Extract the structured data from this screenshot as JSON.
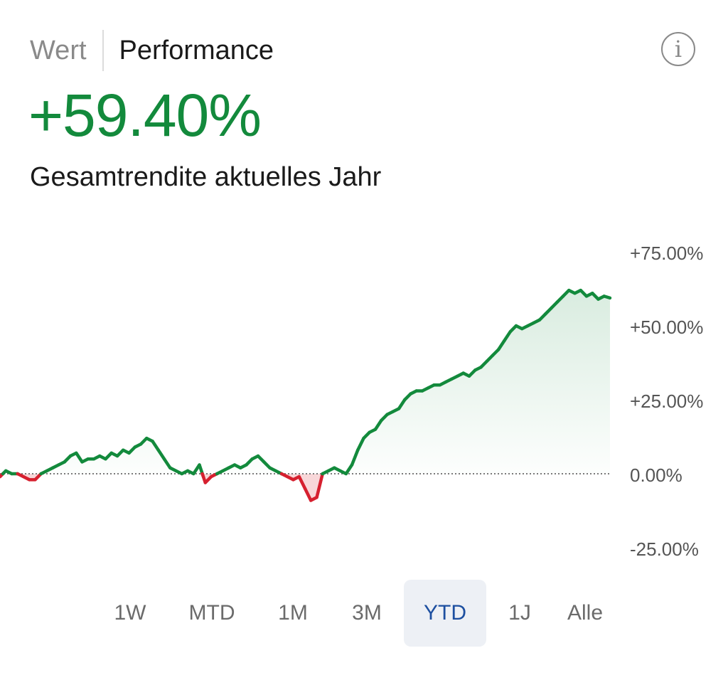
{
  "header": {
    "tabs": [
      {
        "label": "Wert",
        "active": false
      },
      {
        "label": "Performance",
        "active": true
      }
    ],
    "info_icon": "info-icon"
  },
  "summary": {
    "value": "+59.40%",
    "label": "Gesamtrendite aktuelles Jahr"
  },
  "colors": {
    "positive": "#138a3c",
    "negative": "#d6202f",
    "selected_range_bg": "#edf0f5",
    "selected_range_text": "#1d4fa0"
  },
  "chart_data": {
    "type": "area",
    "ylim": [
      -25,
      75
    ],
    "y_ticks": [
      {
        "value": 75,
        "label": "+75.00%"
      },
      {
        "value": 50,
        "label": "+50.00%"
      },
      {
        "value": 25,
        "label": "+25.00%"
      },
      {
        "value": 0,
        "label": "0.00%"
      },
      {
        "value": -25,
        "label": "-25.00%"
      }
    ],
    "baseline": 0,
    "series": [
      {
        "values": [
          -1,
          1,
          0,
          0,
          -1,
          -2,
          -2,
          0,
          1,
          2,
          3,
          4,
          6,
          7,
          4,
          5,
          5,
          6,
          5,
          7,
          6,
          8,
          7,
          9,
          10,
          12,
          11,
          8,
          5,
          2,
          1,
          0,
          1,
          0,
          3,
          -3,
          -1,
          0,
          1,
          2,
          3,
          2,
          3,
          5,
          6,
          4,
          2,
          1,
          0,
          -1,
          -2,
          -1,
          -5,
          -9,
          -8,
          0,
          1,
          2,
          1,
          0,
          3,
          8,
          12,
          14,
          15,
          18,
          20,
          21,
          22,
          25,
          27,
          28,
          28,
          29,
          30,
          30,
          31,
          32,
          33,
          34,
          33,
          35,
          36,
          38,
          40,
          42,
          45,
          48,
          50,
          49,
          50,
          51,
          52,
          54,
          56,
          58,
          60,
          62,
          61,
          62,
          60,
          61,
          59,
          60,
          59.4
        ]
      }
    ]
  },
  "ranges": [
    {
      "label": "1W",
      "selected": false
    },
    {
      "label": "MTD",
      "selected": false
    },
    {
      "label": "1M",
      "selected": false
    },
    {
      "label": "3M",
      "selected": false
    },
    {
      "label": "YTD",
      "selected": true
    },
    {
      "label": "1J",
      "selected": false
    },
    {
      "label": "Alle",
      "selected": false
    }
  ]
}
